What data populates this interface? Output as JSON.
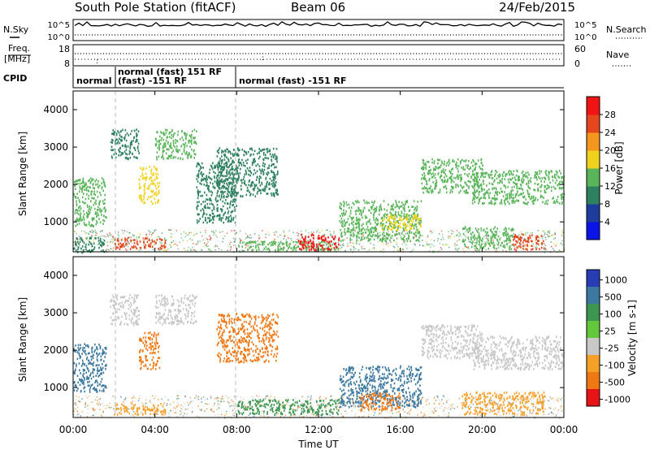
{
  "header": {
    "station": "South Pole Station (fitACF)",
    "beam": "Beam 06",
    "date": "24/Feb/2015"
  },
  "summary_panel": {
    "left_label": "N.Sky",
    "right_label": "N.Search",
    "left_ticks": [
      "10^5",
      "10^0"
    ],
    "right_ticks": [
      "10^5",
      "10^0"
    ]
  },
  "freq_panel": {
    "left_label_1": "Freq.",
    "left_label_2": "[MHz]",
    "right_label": "Nave",
    "left_ticks": [
      "18",
      "8"
    ],
    "right_ticks": [
      "60",
      "0"
    ]
  },
  "cpid_panel": {
    "label": "CPID",
    "segments": [
      {
        "start_hour": 0.0,
        "text": "normal"
      },
      {
        "start_hour": 2.0,
        "text": "normal (fast) 151 RF"
      },
      {
        "start_hour": 2.0,
        "text": "(fast) -151 RF"
      },
      {
        "start_hour": 8.0,
        "text": "normal (fast) -151 RF"
      }
    ]
  },
  "time_axis": {
    "label": "Time UT",
    "ticks": [
      "00:00",
      "04:00",
      "08:00",
      "12:00",
      "16:00",
      "20:00",
      "00:00"
    ],
    "range_hours": [
      0,
      24
    ]
  },
  "chart_data": [
    {
      "type": "heatmap",
      "ylabel": "Slant Range [km]",
      "x_unit": "hours UT",
      "xlim": [
        0,
        24
      ],
      "ylim": [
        200,
        4500
      ],
      "yticks": [
        "1000",
        "2000",
        "3000",
        "4000"
      ],
      "colorbar": {
        "label": "Power [dB]",
        "ticks": [
          "28",
          "24",
          "20",
          "16",
          "12",
          "8",
          "4"
        ],
        "range": [
          0,
          32
        ],
        "colors": [
          "#0a14e6",
          "#1e3c9c",
          "#2d8060",
          "#5ab45a",
          "#f0d21e",
          "#f5961e",
          "#e6461e",
          "#f01414"
        ]
      },
      "regions": [
        {
          "t0": 0.0,
          "t1": 1.6,
          "r0": 900,
          "r1": 2200,
          "value": 14
        },
        {
          "t0": 0.0,
          "t1": 1.5,
          "r0": 200,
          "r1": 600,
          "value": 10
        },
        {
          "t0": 1.8,
          "t1": 3.2,
          "r0": 2700,
          "r1": 3500,
          "value": 10
        },
        {
          "t0": 2.0,
          "t1": 4.5,
          "r0": 300,
          "r1": 600,
          "value": 26
        },
        {
          "t0": 3.2,
          "t1": 4.2,
          "r0": 1500,
          "r1": 2500,
          "value": 18
        },
        {
          "t0": 4.0,
          "t1": 6.0,
          "r0": 2700,
          "r1": 3500,
          "value": 12
        },
        {
          "t0": 6.0,
          "t1": 8.0,
          "r0": 1000,
          "r1": 2600,
          "value": 8
        },
        {
          "t0": 7.0,
          "t1": 10.0,
          "r0": 1700,
          "r1": 3000,
          "value": 10
        },
        {
          "t0": 8.0,
          "t1": 13.0,
          "r0": 250,
          "r1": 500,
          "value": 12
        },
        {
          "t0": 11.0,
          "t1": 13.0,
          "r0": 250,
          "r1": 700,
          "value": 28
        },
        {
          "t0": 13.0,
          "t1": 17.0,
          "r0": 500,
          "r1": 1600,
          "value": 12
        },
        {
          "t0": 15.0,
          "t1": 17.0,
          "r0": 800,
          "r1": 1200,
          "value": 18
        },
        {
          "t0": 17.0,
          "t1": 20.0,
          "r0": 1800,
          "r1": 2700,
          "value": 12
        },
        {
          "t0": 19.5,
          "t1": 24.0,
          "r0": 1500,
          "r1": 2400,
          "value": 14
        },
        {
          "t0": 19.0,
          "t1": 21.5,
          "r0": 300,
          "r1": 900,
          "value": 12
        },
        {
          "t0": 21.5,
          "t1": 23.0,
          "r0": 250,
          "r1": 700,
          "value": 26
        }
      ]
    },
    {
      "type": "heatmap",
      "ylabel": "Slant Range [km]",
      "x_unit": "hours UT",
      "xlim": [
        0,
        24
      ],
      "ylim": [
        200,
        4500
      ],
      "yticks": [
        "1000",
        "2000",
        "3000",
        "4000"
      ],
      "colorbar": {
        "label": "Velocity [m s-1]",
        "ticks": [
          "1000",
          "500",
          "100",
          "25",
          "-25",
          "-100",
          "-500",
          "-1000"
        ],
        "colors": [
          "#283cb4",
          "#3c78a0",
          "#3c9650",
          "#64c83c",
          "#c8c8c8",
          "#f5a028",
          "#f07814",
          "#e61414"
        ]
      },
      "regions": [
        {
          "t0": 0.0,
          "t1": 1.6,
          "r0": 900,
          "r1": 2200,
          "value": 500
        },
        {
          "t0": 1.8,
          "t1": 3.2,
          "r0": 2700,
          "r1": 3500,
          "value": -25
        },
        {
          "t0": 2.0,
          "t1": 4.5,
          "r0": 300,
          "r1": 600,
          "value": -100
        },
        {
          "t0": 3.2,
          "t1": 4.2,
          "r0": 1500,
          "r1": 2500,
          "value": -500
        },
        {
          "t0": 4.0,
          "t1": 6.0,
          "r0": 2700,
          "r1": 3500,
          "value": -25
        },
        {
          "t0": 7.0,
          "t1": 10.0,
          "r0": 1700,
          "r1": 3000,
          "value": -500
        },
        {
          "t0": 8.0,
          "t1": 13.0,
          "r0": 300,
          "r1": 700,
          "value": 100
        },
        {
          "t0": 13.0,
          "t1": 17.0,
          "r0": 500,
          "r1": 1600,
          "value": 500
        },
        {
          "t0": 14.0,
          "t1": 16.0,
          "r0": 400,
          "r1": 900,
          "value": -500
        },
        {
          "t0": 17.0,
          "t1": 20.0,
          "r0": 1800,
          "r1": 2700,
          "value": -25
        },
        {
          "t0": 19.5,
          "t1": 24.0,
          "r0": 1500,
          "r1": 2400,
          "value": -25
        },
        {
          "t0": 19.0,
          "t1": 23.0,
          "r0": 300,
          "r1": 900,
          "value": -100
        }
      ]
    }
  ]
}
